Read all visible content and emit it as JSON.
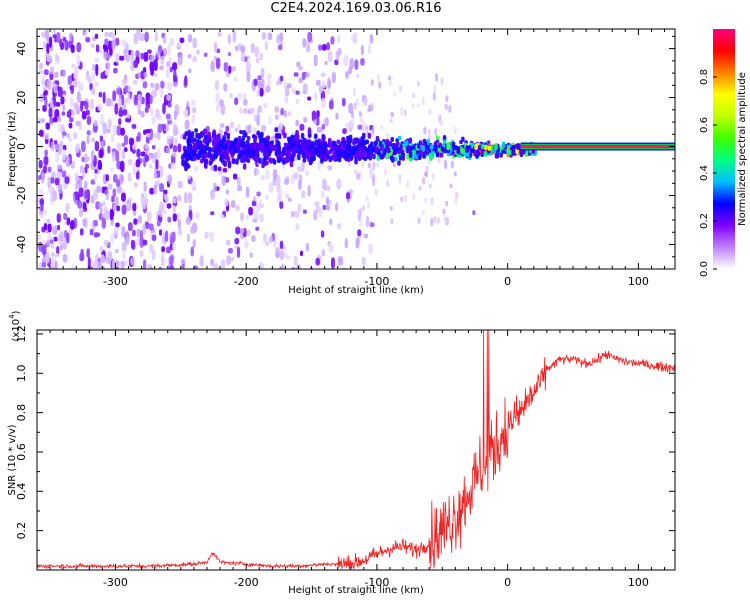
{
  "figure": {
    "title": "C2E4.2024.169.03.06.R16"
  },
  "chart_data": [
    {
      "type": "heatmap",
      "xlabel": "Height of straight line (km)",
      "ylabel": "Frequency (Hz)",
      "xlim": [
        -360,
        128
      ],
      "ylim": [
        -50,
        48
      ],
      "x_ticks": [
        -300,
        -200,
        -100,
        0,
        100
      ],
      "y_ticks": [
        -40,
        -20,
        0,
        20,
        40
      ],
      "colorbar": {
        "label": "Normalized spectral amplitude",
        "range": [
          0.0,
          1.0
        ],
        "ticks": [
          "0.0",
          "0.2",
          "0.4",
          "0.6",
          "0.8"
        ],
        "colors": [
          "#ffffff",
          "#c080ff",
          "#8000ff",
          "#0000ff",
          "#00c0ff",
          "#00ff80",
          "#40ff00",
          "#c0ff00",
          "#ffff00",
          "#ff8000",
          "#ff0000",
          "#ff0080"
        ]
      },
      "features": {
        "noise_x_range": [
          -360,
          -120
        ],
        "signal_x_range": [
          -250,
          20
        ],
        "tone_x_range": [
          10,
          128
        ],
        "tone_frequency": 0
      }
    },
    {
      "type": "line",
      "xlabel": "Height of straight line (km)",
      "ylabel": "SNR (10 * v/v)",
      "multiplier_label": "(x10",
      "multiplier_exponent": "4",
      "xlim": [
        -360,
        128
      ],
      "ylim": [
        0,
        1.22
      ],
      "x_ticks": [
        -300,
        -200,
        -100,
        0,
        100
      ],
      "y_ticks": [
        "0.2",
        "0.4",
        "0.6",
        "0.8",
        "1.0",
        "1.2"
      ],
      "color": "#ee2222",
      "series": [
        {
          "x": [
            -360,
            -330,
            -300,
            -270,
            -240,
            -230,
            -226,
            -220,
            -200,
            -180,
            -160,
            -140,
            -120,
            -110,
            -100,
            -90,
            -80,
            -70,
            -60,
            -50,
            -40,
            -35,
            -30,
            -25,
            -20,
            -15,
            -10,
            -5,
            0,
            5,
            10,
            15,
            20,
            25,
            30,
            40,
            50,
            60,
            70,
            75,
            80,
            90,
            100,
            110,
            120,
            128
          ],
          "y": [
            0.02,
            0.02,
            0.02,
            0.02,
            0.03,
            0.04,
            0.09,
            0.04,
            0.03,
            0.02,
            0.02,
            0.03,
            0.03,
            0.05,
            0.08,
            0.11,
            0.12,
            0.1,
            0.14,
            0.2,
            0.28,
            0.33,
            0.4,
            0.45,
            0.52,
            0.58,
            0.62,
            0.67,
            0.73,
            0.77,
            0.8,
            0.86,
            0.9,
            0.95,
            1.02,
            1.07,
            1.07,
            1.05,
            1.07,
            1.1,
            1.08,
            1.06,
            1.05,
            1.04,
            1.03,
            1.03
          ]
        }
      ]
    }
  ]
}
